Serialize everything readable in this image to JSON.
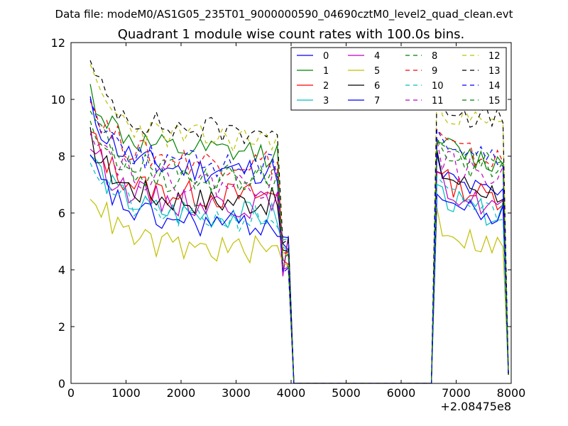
{
  "chart_data": {
    "type": "line",
    "suptitle": "Data file: modeM0/AS1G05_235T01_9000000590_04690cztM0_level2_quad_clean.evt",
    "title": "Quadrant 1 module wise count rates with 100.0s bins.",
    "xlabel": "",
    "ylabel": "",
    "x_offset_label": "+2.08475e8",
    "xlim": [
      0,
      8000
    ],
    "ylim": [
      0,
      12
    ],
    "xticks": [
      0,
      1000,
      2000,
      3000,
      4000,
      5000,
      6000,
      7000,
      8000
    ],
    "yticks": [
      0,
      2,
      4,
      6,
      8,
      10,
      12
    ],
    "xtick_labels": [
      "0",
      "1000",
      "2000",
      "3000",
      "4000",
      "5000",
      "6000",
      "7000",
      "8000"
    ],
    "ytick_labels": [
      "0",
      "2",
      "4",
      "6",
      "8",
      "10",
      "12"
    ],
    "legend_position": "top-right",
    "bin_width": 100,
    "gap": {
      "end_of_first_segment": 3800,
      "start_of_second_segment": 6600
    },
    "series": [
      {
        "name": "0",
        "color": "#0000ff",
        "style": "solid",
        "level1": 7.5,
        "level2": 6.5,
        "seed": 11
      },
      {
        "name": "1",
        "color": "#008000",
        "style": "solid",
        "level1": 8.1,
        "level2": 7.6,
        "seed": 12
      },
      {
        "name": "2",
        "color": "#ff0000",
        "style": "solid",
        "level1": 6.6,
        "level2": 6.4,
        "seed": 13
      },
      {
        "name": "3",
        "color": "#00bfbf",
        "style": "solid",
        "level1": 5.9,
        "level2": 5.8,
        "seed": 14
      },
      {
        "name": "4",
        "color": "#bf00bf",
        "style": "solid",
        "level1": 6.3,
        "level2": 6.1,
        "seed": 15
      },
      {
        "name": "5",
        "color": "#bfbf00",
        "style": "solid",
        "level1": 4.7,
        "level2": 4.7,
        "seed": 16
      },
      {
        "name": "6",
        "color": "#000000",
        "style": "solid",
        "level1": 6.4,
        "level2": 6.6,
        "seed": 17
      },
      {
        "name": "7",
        "color": "#0000ff",
        "style": "solid",
        "level1": 5.6,
        "level2": 5.7,
        "seed": 18
      },
      {
        "name": "8",
        "color": "#008000",
        "style": "dashed",
        "level1": 7.3,
        "level2": 7.5,
        "seed": 19
      },
      {
        "name": "9",
        "color": "#ff0000",
        "style": "dashed",
        "level1": 7.8,
        "level2": 7.7,
        "seed": 20
      },
      {
        "name": "10",
        "color": "#00bfbf",
        "style": "dashed",
        "level1": 5.8,
        "level2": 5.9,
        "seed": 21
      },
      {
        "name": "11",
        "color": "#bf00bf",
        "style": "dashed",
        "level1": 7.0,
        "level2": 7.1,
        "seed": 22
      },
      {
        "name": "12",
        "color": "#bfbf00",
        "style": "dashed",
        "level1": 8.6,
        "level2": 8.9,
        "seed": 23
      },
      {
        "name": "13",
        "color": "#000000",
        "style": "dashed",
        "level1": 8.9,
        "level2": 9.1,
        "seed": 24
      },
      {
        "name": "14",
        "color": "#0000ff",
        "style": "dashed",
        "level1": 7.7,
        "level2": 7.8,
        "seed": 25
      },
      {
        "name": "15",
        "color": "#008000",
        "style": "dashed",
        "level1": 7.1,
        "level2": 7.3,
        "seed": 26
      }
    ]
  }
}
